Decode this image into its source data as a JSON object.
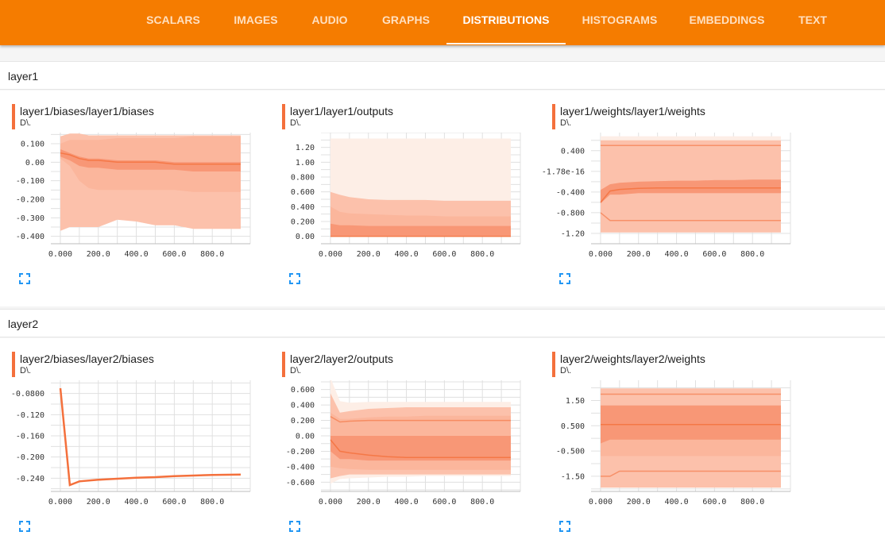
{
  "nav": {
    "tabs": [
      {
        "label": "SCALARS"
      },
      {
        "label": "IMAGES"
      },
      {
        "label": "AUDIO"
      },
      {
        "label": "GRAPHS"
      },
      {
        "label": "DISTRIBUTIONS",
        "active": true
      },
      {
        "label": "HISTOGRAMS"
      },
      {
        "label": "EMBEDDINGS"
      },
      {
        "label": "TEXT"
      }
    ]
  },
  "colors": {
    "header": "#f57c00",
    "accent": "#f4703c",
    "band_light": "#fdeee6",
    "band_mid": "#fbb197",
    "band_dark": "#f78c6a",
    "line": "#f4703c"
  },
  "sections": [
    {
      "name": "layer1",
      "cards": [
        {
          "title": "layer1/biases/layer1/biases",
          "subtitle": "D\\.",
          "icon": "fullscreen-icon"
        },
        {
          "title": "layer1/layer1/outputs",
          "subtitle": "D\\.",
          "icon": "fullscreen-icon"
        },
        {
          "title": "layer1/weights/layer1/weights",
          "subtitle": "D\\.",
          "icon": "fullscreen-icon"
        }
      ]
    },
    {
      "name": "layer2",
      "cards": [
        {
          "title": "layer2/biases/layer2/biases",
          "subtitle": "D\\.",
          "icon": "fullscreen-icon"
        },
        {
          "title": "layer2/layer2/outputs",
          "subtitle": "D\\.",
          "icon": "fullscreen-icon"
        },
        {
          "title": "layer2/weights/layer2/weights",
          "subtitle": "D\\.",
          "icon": "fullscreen-icon"
        }
      ]
    }
  ],
  "chart_data": [
    {
      "type": "area",
      "x": [
        0,
        50,
        100,
        150,
        200,
        300,
        400,
        500,
        600,
        700,
        800,
        950
      ],
      "xticks": [
        "0.000",
        "200.0",
        "400.0",
        "600.0",
        "800.0"
      ],
      "xlim": [
        -50,
        1000
      ],
      "ylim": [
        -0.44,
        0.16
      ],
      "yticks": [
        0.1,
        0.0,
        -0.1,
        -0.2,
        -0.3,
        -0.4
      ],
      "yticklabels": [
        "0.100",
        "0.00",
        "-0.100",
        "-0.200",
        "-0.300",
        "-0.400"
      ],
      "bands": [
        {
          "lo": [
            -0.37,
            -0.35,
            -0.35,
            -0.35,
            -0.35,
            -0.31,
            -0.32,
            -0.34,
            -0.34,
            -0.36,
            -0.36,
            -0.36
          ],
          "hi": [
            0.14,
            0.155,
            0.155,
            0.145,
            0.145,
            0.145,
            0.145,
            0.145,
            0.145,
            0.145,
            0.145,
            0.145
          ]
        },
        {
          "lo": [
            -0.37,
            -0.35,
            -0.35,
            -0.35,
            -0.35,
            -0.31,
            -0.32,
            -0.34,
            -0.34,
            -0.36,
            -0.36,
            -0.36
          ],
          "hi": [
            0.14,
            0.155,
            0.155,
            0.145,
            0.145,
            0.145,
            0.145,
            0.145,
            0.145,
            0.145,
            0.145,
            0.145
          ]
        },
        {
          "lo": [
            0.02,
            -0.02,
            -0.1,
            -0.14,
            -0.15,
            -0.15,
            -0.15,
            -0.15,
            -0.15,
            -0.16,
            -0.16,
            -0.16
          ],
          "hi": [
            0.1,
            0.12,
            0.12,
            0.12,
            0.12,
            0.13,
            0.13,
            0.13,
            0.13,
            0.14,
            0.14,
            0.14
          ]
        },
        {
          "lo": [
            0.03,
            0.01,
            -0.02,
            -0.03,
            -0.03,
            -0.04,
            -0.04,
            -0.04,
            -0.04,
            -0.05,
            -0.05,
            -0.05
          ],
          "hi": [
            0.07,
            0.05,
            0.03,
            0.02,
            0.02,
            0.01,
            0.01,
            0.01,
            0.0,
            0.0,
            0.0,
            0.0
          ]
        }
      ],
      "median": [
        0.05,
        0.04,
        0.02,
        0.01,
        0.01,
        0.0,
        0.0,
        0.0,
        -0.01,
        -0.01,
        -0.01,
        -0.01
      ]
    },
    {
      "type": "area",
      "x": [
        0,
        50,
        100,
        200,
        300,
        400,
        500,
        600,
        700,
        800,
        950
      ],
      "xticks": [
        "0.000",
        "200.0",
        "400.0",
        "600.0",
        "800.0"
      ],
      "xlim": [
        -50,
        1000
      ],
      "ylim": [
        -0.1,
        1.4
      ],
      "yticks": [
        1.2,
        1.0,
        0.8,
        0.6,
        0.4,
        0.2,
        0.0
      ],
      "yticklabels": [
        "1.20",
        "1.00",
        "0.800",
        "0.600",
        "0.400",
        "0.200",
        "0.00"
      ],
      "bands": [
        {
          "lo": [
            0,
            0,
            0,
            0,
            0,
            0,
            0,
            0,
            0,
            0,
            0
          ],
          "hi": [
            1.32,
            1.32,
            1.32,
            1.32,
            1.32,
            1.32,
            1.32,
            1.32,
            1.32,
            1.32,
            1.32
          ]
        },
        {
          "lo": [
            0,
            0,
            0,
            0,
            0,
            0,
            0,
            0,
            0,
            0,
            0
          ],
          "hi": [
            0.6,
            0.56,
            0.53,
            0.5,
            0.49,
            0.49,
            0.49,
            0.48,
            0.48,
            0.48,
            0.48
          ]
        },
        {
          "lo": [
            0,
            0,
            0,
            0,
            0,
            0,
            0,
            0,
            0,
            0,
            0
          ],
          "hi": [
            0.4,
            0.33,
            0.31,
            0.3,
            0.29,
            0.28,
            0.28,
            0.27,
            0.27,
            0.27,
            0.27
          ]
        },
        {
          "lo": [
            0,
            0,
            0,
            0,
            0,
            0,
            0,
            0,
            0,
            0,
            0
          ],
          "hi": [
            0.17,
            0.15,
            0.15,
            0.14,
            0.14,
            0.14,
            0.14,
            0.14,
            0.14,
            0.14,
            0.14
          ]
        }
      ],
      "median": [
        0.0,
        0.0,
        0.0,
        0.0,
        0.0,
        0.0,
        0.0,
        0.0,
        0.0,
        0.0,
        0.0
      ]
    },
    {
      "type": "area",
      "x": [
        0,
        50,
        100,
        200,
        300,
        400,
        500,
        600,
        700,
        800,
        950
      ],
      "xticks": [
        "0.000",
        "200.0",
        "400.0",
        "600.0",
        "800.0"
      ],
      "xlim": [
        -50,
        1000
      ],
      "ylim": [
        -1.4,
        0.75
      ],
      "yticks": [
        0.4,
        0.0,
        -0.4,
        -0.8,
        -1.2
      ],
      "yticklabels": [
        "0.400",
        "-1.78e-16",
        "-0.400",
        "-0.800",
        "-1.20"
      ],
      "bands": [
        {
          "lo": [
            -1.18,
            -1.18,
            -1.18,
            -1.18,
            -1.18,
            -1.18,
            -1.18,
            -1.18,
            -1.18,
            -1.18,
            -1.18
          ],
          "hi": [
            0.68,
            0.68,
            0.68,
            0.68,
            0.68,
            0.68,
            0.68,
            0.68,
            0.68,
            0.68,
            0.68
          ]
        },
        {
          "lo": [
            -1.18,
            -1.18,
            -1.18,
            -1.18,
            -1.18,
            -1.18,
            -1.18,
            -1.18,
            -1.18,
            -1.18,
            -1.18
          ],
          "hi": [
            0.6,
            0.6,
            0.6,
            0.6,
            0.6,
            0.6,
            0.6,
            0.6,
            0.6,
            0.6,
            0.6
          ]
        },
        {
          "lo": [
            -0.62,
            -0.45,
            -0.45,
            -0.42,
            -0.42,
            -0.42,
            -0.42,
            -0.42,
            -0.42,
            -0.42,
            -0.42
          ],
          "hi": [
            -0.36,
            -0.25,
            -0.22,
            -0.2,
            -0.19,
            -0.18,
            -0.18,
            -0.17,
            -0.17,
            -0.16,
            -0.16
          ]
        },
        {
          "lo": [
            -0.62,
            -0.45,
            -0.45,
            -0.42,
            -0.42,
            -0.42,
            -0.42,
            -0.42,
            -0.42,
            -0.42,
            -0.42
          ],
          "hi": [
            -0.36,
            -0.25,
            -0.22,
            -0.2,
            -0.19,
            -0.18,
            -0.18,
            -0.17,
            -0.17,
            -0.16,
            -0.16
          ]
        }
      ],
      "median": [
        -0.6,
        -0.38,
        -0.35,
        -0.33,
        -0.32,
        -0.32,
        -0.32,
        -0.32,
        -0.32,
        -0.32,
        -0.32
      ],
      "lines": [
        [
          -0.8,
          -0.95,
          -0.95,
          -0.95,
          -0.95,
          -0.95,
          -0.95,
          -0.95,
          -0.95,
          -0.95,
          -0.95
        ],
        [
          0.5,
          0.5,
          0.5,
          0.5,
          0.5,
          0.5,
          0.5,
          0.5,
          0.5,
          0.5,
          0.5
        ]
      ]
    },
    {
      "type": "line",
      "x": [
        0,
        50,
        100,
        200,
        300,
        400,
        500,
        600,
        700,
        800,
        950
      ],
      "xticks": [
        "0.000",
        "200.0",
        "400.0",
        "600.0",
        "800.0"
      ],
      "xlim": [
        -50,
        1000
      ],
      "ylim": [
        -0.265,
        -0.055
      ],
      "yticks": [
        -0.08,
        -0.12,
        -0.16,
        -0.2,
        -0.24
      ],
      "yticklabels": [
        "-0.0800",
        "-0.120",
        "-0.160",
        "-0.200",
        "-0.240"
      ],
      "bands": [],
      "median": [
        -0.07,
        -0.253,
        -0.246,
        -0.243,
        -0.241,
        -0.239,
        -0.238,
        -0.236,
        -0.235,
        -0.234,
        -0.233
      ]
    },
    {
      "type": "area",
      "x": [
        0,
        50,
        100,
        200,
        300,
        400,
        500,
        600,
        700,
        800,
        950
      ],
      "xticks": [
        "0.000",
        "200.0",
        "400.0",
        "600.0",
        "800.0"
      ],
      "xlim": [
        -50,
        1000
      ],
      "ylim": [
        -0.72,
        0.72
      ],
      "yticks": [
        0.6,
        0.4,
        0.2,
        0.0,
        -0.2,
        -0.4,
        -0.6
      ],
      "yticklabels": [
        "0.600",
        "0.400",
        "0.200",
        "0.00",
        "-0.200",
        "-0.400",
        "-0.600"
      ],
      "bands": [
        {
          "lo": [
            -0.62,
            -0.56,
            -0.55,
            -0.54,
            -0.53,
            -0.53,
            -0.52,
            -0.52,
            -0.52,
            -0.52,
            -0.52
          ],
          "hi": [
            0.75,
            0.45,
            0.43,
            0.44,
            0.44,
            0.44,
            0.44,
            0.44,
            0.44,
            0.44,
            0.44
          ]
        },
        {
          "lo": [
            -0.55,
            -0.52,
            -0.5,
            -0.5,
            -0.5,
            -0.5,
            -0.5,
            -0.5,
            -0.5,
            -0.5,
            -0.5
          ],
          "hi": [
            0.55,
            0.3,
            0.32,
            0.35,
            0.36,
            0.37,
            0.37,
            0.37,
            0.37,
            0.37,
            0.37
          ]
        },
        {
          "lo": [
            -0.4,
            -0.42,
            -0.43,
            -0.44,
            -0.44,
            -0.44,
            -0.44,
            -0.44,
            -0.44,
            -0.44,
            -0.44
          ],
          "hi": [
            0.3,
            0.22,
            0.22,
            0.24,
            0.25,
            0.25,
            0.26,
            0.26,
            0.26,
            0.26,
            0.26
          ]
        },
        {
          "lo": [
            -0.2,
            -0.3,
            -0.3,
            -0.32,
            -0.32,
            -0.32,
            -0.32,
            -0.32,
            -0.32,
            -0.32,
            -0.32
          ],
          "hi": [
            0.0,
            0.0,
            0.0,
            0.0,
            0.0,
            0.0,
            0.0,
            0.0,
            0.0,
            0.0,
            0.0
          ]
        }
      ],
      "median": [
        -0.05,
        -0.2,
        -0.22,
        -0.25,
        -0.27,
        -0.28,
        -0.28,
        -0.28,
        -0.28,
        -0.28,
        -0.28
      ],
      "lines": [
        [
          0.25,
          0.18,
          0.19,
          0.2,
          0.2,
          0.2,
          0.2,
          0.2,
          0.2,
          0.2,
          0.2
        ]
      ]
    },
    {
      "type": "area",
      "x": [
        0,
        50,
        100,
        200,
        300,
        400,
        500,
        600,
        700,
        800,
        950
      ],
      "xticks": [
        "0.000",
        "200.0",
        "400.0",
        "600.0",
        "800.0"
      ],
      "xlim": [
        -50,
        1000
      ],
      "ylim": [
        -2.1,
        2.3
      ],
      "yticks": [
        1.5,
        0.5,
        -0.5,
        -1.5
      ],
      "yticklabels": [
        "1.50",
        "0.500",
        "-0.500",
        "-1.50"
      ],
      "bands": [
        {
          "lo": [
            -1.95,
            -1.95,
            -1.95,
            -1.95,
            -1.95,
            -1.95,
            -1.95,
            -1.95,
            -1.95,
            -1.95,
            -1.95
          ],
          "hi": [
            1.98,
            1.98,
            1.98,
            1.98,
            1.98,
            1.98,
            1.98,
            1.98,
            1.98,
            1.98,
            1.98
          ]
        },
        {
          "lo": [
            -1.95,
            -1.95,
            -1.95,
            -1.95,
            -1.95,
            -1.95,
            -1.95,
            -1.95,
            -1.95,
            -1.95,
            -1.95
          ],
          "hi": [
            1.98,
            1.98,
            1.98,
            1.98,
            1.98,
            1.98,
            1.98,
            1.98,
            1.98,
            1.98,
            1.98
          ]
        },
        {
          "lo": [
            -0.7,
            -0.7,
            -0.7,
            -0.7,
            -0.7,
            -0.7,
            -0.7,
            -0.7,
            -0.7,
            -0.7,
            -0.7
          ],
          "hi": [
            1.3,
            1.3,
            1.3,
            1.3,
            1.3,
            1.3,
            1.3,
            1.3,
            1.3,
            1.3,
            1.3
          ]
        },
        {
          "lo": [
            -0.2,
            -0.05,
            -0.05,
            -0.05,
            -0.05,
            -0.05,
            -0.05,
            -0.05,
            -0.05,
            -0.05,
            -0.05
          ],
          "hi": [
            1.3,
            1.3,
            1.3,
            1.3,
            1.3,
            1.3,
            1.3,
            1.3,
            1.3,
            1.3,
            1.3
          ]
        }
      ],
      "median": [
        0.55,
        0.55,
        0.55,
        0.55,
        0.55,
        0.55,
        0.55,
        0.55,
        0.55,
        0.55,
        0.55
      ],
      "lines": [
        [
          -1.5,
          -1.5,
          -1.3,
          -1.3,
          -1.3,
          -1.3,
          -1.3,
          -1.3,
          -1.3,
          -1.3,
          -1.3
        ],
        [
          1.75,
          1.75,
          1.75,
          1.75,
          1.75,
          1.75,
          1.75,
          1.75,
          1.75,
          1.75,
          1.75
        ]
      ]
    }
  ]
}
